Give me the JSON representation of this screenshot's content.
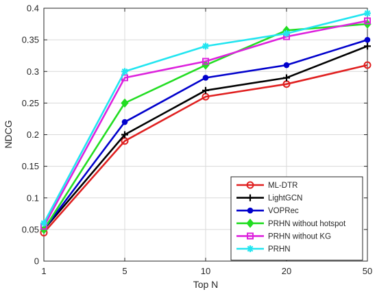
{
  "chart_data": {
    "type": "line",
    "title": "",
    "xlabel": "Top N",
    "ylabel": "NDCG",
    "categories": [
      "1",
      "5",
      "10",
      "20",
      "50"
    ],
    "ylim": [
      0,
      0.4
    ],
    "yticks": [
      "0",
      "0.05",
      "0.1",
      "0.15",
      "0.2",
      "0.25",
      "0.3",
      "0.35",
      "0.4"
    ],
    "grid": true,
    "legend_position": "bottom-right",
    "series": [
      {
        "name": "ML-DTR",
        "color": "#e02020",
        "marker": "circle-open",
        "values": [
          0.045,
          0.19,
          0.26,
          0.28,
          0.31
        ]
      },
      {
        "name": "LightGCN",
        "color": "#000000",
        "marker": "plus",
        "values": [
          0.05,
          0.2,
          0.27,
          0.29,
          0.34
        ]
      },
      {
        "name": "VOPRec",
        "color": "#0000cc",
        "marker": "circle-filled",
        "values": [
          0.05,
          0.22,
          0.29,
          0.31,
          0.35
        ]
      },
      {
        "name": "PRHN without hotspot",
        "color": "#22dd22",
        "marker": "diamond",
        "values": [
          0.05,
          0.25,
          0.31,
          0.365,
          0.375
        ]
      },
      {
        "name": "PRHN without KG",
        "color": "#dd22dd",
        "marker": "square",
        "values": [
          0.055,
          0.29,
          0.316,
          0.355,
          0.38
        ]
      },
      {
        "name": "PRHN",
        "color": "#22e5f0",
        "marker": "asterisk",
        "values": [
          0.06,
          0.3,
          0.34,
          0.36,
          0.392
        ]
      }
    ]
  }
}
